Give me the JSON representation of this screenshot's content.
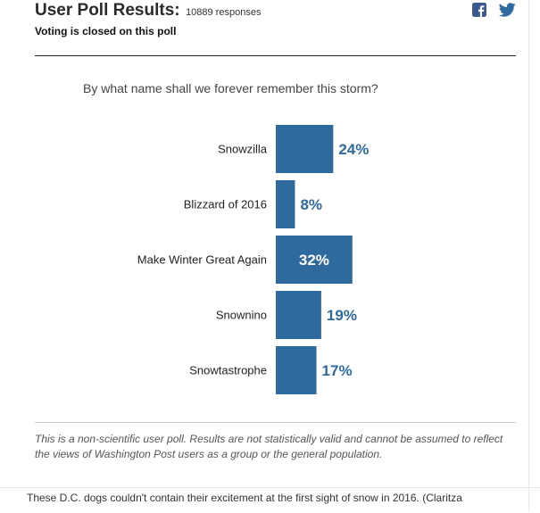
{
  "header": {
    "title": "User Poll Results:",
    "responses": "10889 responses",
    "status": "Voting is closed on this poll",
    "share_icons": [
      "facebook-icon",
      "twitter-icon"
    ]
  },
  "question": "By what name shall we forever remember this storm?",
  "chart_data": {
    "type": "bar",
    "orientation": "horizontal",
    "categories": [
      "Snowzilla",
      "Blizzard of 2016",
      "Make Winter Great Again",
      "Snownino",
      "Snowtastrophe"
    ],
    "values": [
      24,
      8,
      32,
      19,
      17
    ],
    "value_labels": [
      "24%",
      "8%",
      "32%",
      "19%",
      "17%"
    ],
    "unit": "%",
    "bar_color": "#2f6a9e",
    "label_color_outside": "#2f6a9e",
    "label_color_inside": "#ffffff",
    "title": "",
    "xlabel": "",
    "ylabel": ""
  },
  "disclaimer": "This is a non-scientific user poll. Results are not statistically valid and cannot be assumed to reflect the views of Washington Post users as a group or the general population.",
  "caption": "These D.C. dogs couldn't contain their excitement at the first sight of snow in 2016. (Claritza"
}
